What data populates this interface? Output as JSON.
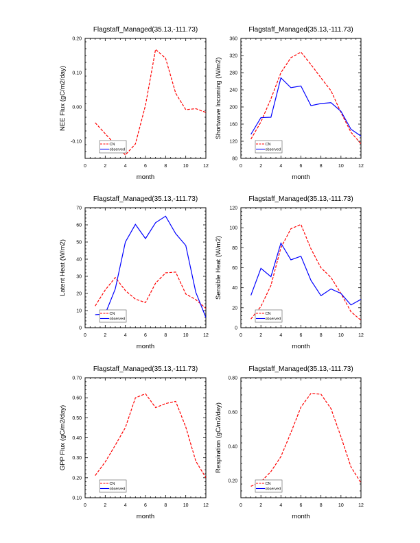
{
  "chart_data": [
    {
      "type": "line",
      "title": "Flagstaff_Managed(35.13,-111.73)",
      "xlabel": "month",
      "ylabel": "NEE Flux (gC/m2/day)",
      "xlim": [
        0,
        12
      ],
      "ylim": [
        -0.15,
        0.2
      ],
      "xticks": [
        0,
        2,
        4,
        6,
        8,
        10,
        12
      ],
      "xtick_labels": [
        "0",
        "2",
        "4",
        "6",
        "8",
        "10",
        "12"
      ],
      "yticks": [
        -0.1,
        0.0,
        0.1,
        0.2
      ],
      "ytick_labels": [
        "-0.10",
        "0.00",
        "0.10",
        "0.20"
      ],
      "grid": false,
      "legend": "bottom-left",
      "x": [
        1,
        2,
        3,
        4,
        5,
        6,
        7,
        8,
        9,
        10,
        11,
        12
      ],
      "series": [
        {
          "name": "CN",
          "color": "#ff0000",
          "dash": true,
          "values": [
            -0.046,
            -0.078,
            -0.11,
            -0.14,
            -0.108,
            0.005,
            0.168,
            0.142,
            0.04,
            -0.008,
            -0.005,
            -0.016
          ]
        },
        {
          "name": "observed",
          "color": "#0000ff",
          "dash": false,
          "values": []
        }
      ]
    },
    {
      "type": "line",
      "title": "Flagstaff_Managed(35.13,-111.73)",
      "xlabel": "month",
      "ylabel": "Shortwave Incoming (W/m2)",
      "xlim": [
        0,
        12
      ],
      "ylim": [
        80,
        360
      ],
      "xticks": [
        0,
        2,
        4,
        6,
        8,
        10,
        12
      ],
      "xtick_labels": [
        "0",
        "2",
        "4",
        "6",
        "8",
        "10",
        "12"
      ],
      "yticks": [
        80,
        120,
        160,
        200,
        240,
        280,
        320,
        360
      ],
      "ytick_labels": [
        "80",
        "120",
        "160",
        "200",
        "240",
        "280",
        "320",
        "360"
      ],
      "grid": false,
      "legend": "bottom-left",
      "x": [
        1,
        2,
        3,
        4,
        5,
        6,
        7,
        8,
        9,
        10,
        11,
        12
      ],
      "series": [
        {
          "name": "CN",
          "color": "#ff0000",
          "dash": true,
          "values": [
            125,
            165,
            219,
            280,
            315,
            328,
            299,
            268,
            238,
            187,
            141,
            114
          ]
        },
        {
          "name": "observed",
          "color": "#0000ff",
          "dash": false,
          "values": [
            136,
            175,
            176,
            268,
            245,
            249,
            203,
            208,
            210,
            190,
            148,
            132
          ]
        }
      ]
    },
    {
      "type": "line",
      "title": "Flagstaff_Managed(35.13,-111.73)",
      "xlabel": "month",
      "ylabel": "Latent Heat (W/m2)",
      "xlim": [
        0,
        12
      ],
      "ylim": [
        0,
        70
      ],
      "xticks": [
        0,
        2,
        4,
        6,
        8,
        10,
        12
      ],
      "xtick_labels": [
        "0",
        "2",
        "4",
        "6",
        "8",
        "10",
        "12"
      ],
      "yticks": [
        0,
        10,
        20,
        30,
        40,
        50,
        60,
        70
      ],
      "ytick_labels": [
        "0",
        "10",
        "20",
        "30",
        "40",
        "50",
        "60",
        "70"
      ],
      "grid": false,
      "legend": "bottom-left",
      "x": [
        1,
        2,
        3,
        4,
        5,
        6,
        7,
        8,
        9,
        10,
        11,
        12
      ],
      "series": [
        {
          "name": "CN",
          "color": "#ff0000",
          "dash": true,
          "values": [
            12.7,
            22.0,
            29.3,
            21.7,
            16.7,
            14.7,
            26.0,
            32.0,
            32.5,
            19.7,
            16.4,
            11.3
          ]
        },
        {
          "name": "observed",
          "color": "#0000ff",
          "dash": false,
          "values": [
            7.6,
            8.0,
            22.7,
            50.0,
            60.3,
            52.0,
            61.3,
            65.1,
            54.9,
            48.0,
            20.7,
            6.0
          ]
        }
      ]
    },
    {
      "type": "line",
      "title": "Flagstaff_Managed(35.13,-111.73)",
      "xlabel": "month",
      "ylabel": "Sensible Heat (W/m2)",
      "xlim": [
        0,
        12
      ],
      "ylim": [
        0,
        120
      ],
      "xticks": [
        0,
        2,
        4,
        6,
        8,
        10,
        12
      ],
      "xtick_labels": [
        "0",
        "2",
        "4",
        "6",
        "8",
        "10",
        "12"
      ],
      "yticks": [
        0,
        20,
        40,
        60,
        80,
        100,
        120
      ],
      "ytick_labels": [
        "0",
        "20",
        "40",
        "60",
        "80",
        "100",
        "120"
      ],
      "grid": false,
      "legend": "bottom-left",
      "x": [
        1,
        2,
        3,
        4,
        5,
        6,
        7,
        8,
        9,
        10,
        11,
        12
      ],
      "series": [
        {
          "name": "CN",
          "color": "#ff0000",
          "dash": true,
          "values": [
            8.7,
            21.3,
            42.3,
            80.0,
            99.0,
            103.3,
            78.9,
            59.9,
            50.3,
            34.3,
            16.0,
            7.5
          ]
        },
        {
          "name": "observed",
          "color": "#0000ff",
          "dash": false,
          "values": [
            32.4,
            59.4,
            51.0,
            84.6,
            67.9,
            71.5,
            47.3,
            32.0,
            38.8,
            34.3,
            22.8,
            28.3
          ]
        }
      ]
    },
    {
      "type": "line",
      "title": "Flagstaff_Managed(35.13,-111.73)",
      "xlabel": "month",
      "ylabel": "GPP Flux (gC/m2/day)",
      "xlim": [
        0,
        12
      ],
      "ylim": [
        0.1,
        0.7
      ],
      "xticks": [
        0,
        2,
        4,
        6,
        8,
        10,
        12
      ],
      "xtick_labels": [
        "0",
        "2",
        "4",
        "6",
        "8",
        "10",
        "12"
      ],
      "yticks": [
        0.1,
        0.2,
        0.3,
        0.4,
        0.5,
        0.6,
        0.7
      ],
      "ytick_labels": [
        "0.10",
        "0.20",
        "0.30",
        "0.40",
        "0.50",
        "0.60",
        "0.70"
      ],
      "grid": false,
      "legend": "bottom-left",
      "x": [
        1,
        2,
        3,
        4,
        5,
        6,
        7,
        8,
        9,
        10,
        11,
        12
      ],
      "series": [
        {
          "name": "CN",
          "color": "#ff0000",
          "dash": true,
          "values": [
            0.211,
            0.279,
            0.363,
            0.451,
            0.6,
            0.62,
            0.551,
            0.571,
            0.582,
            0.454,
            0.283,
            0.2
          ]
        },
        {
          "name": "observed",
          "color": "#0000ff",
          "dash": false,
          "values": []
        }
      ]
    },
    {
      "type": "line",
      "title": "Flagstaff_Managed(35.13,-111.73)",
      "xlabel": "month",
      "ylabel": "Respiration (gC/m2/day)",
      "xlim": [
        0,
        12
      ],
      "ylim": [
        0.1,
        0.8
      ],
      "xticks": [
        0,
        2,
        4,
        6,
        8,
        10,
        12
      ],
      "xtick_labels": [
        "0",
        "2",
        "4",
        "6",
        "8",
        "10",
        "12"
      ],
      "yticks": [
        0.2,
        0.4,
        0.6,
        0.8
      ],
      "ytick_labels": [
        "0.20",
        "0.40",
        "0.60",
        "0.80"
      ],
      "grid": false,
      "legend": "bottom-left",
      "x": [
        1,
        2,
        3,
        4,
        5,
        6,
        7,
        8,
        9,
        10,
        11,
        12
      ],
      "series": [
        {
          "name": "CN",
          "color": "#ff0000",
          "dash": true,
          "values": [
            0.167,
            0.193,
            0.253,
            0.34,
            0.48,
            0.629,
            0.709,
            0.704,
            0.62,
            0.456,
            0.28,
            0.187
          ]
        },
        {
          "name": "observed",
          "color": "#0000ff",
          "dash": false,
          "values": []
        }
      ]
    }
  ]
}
